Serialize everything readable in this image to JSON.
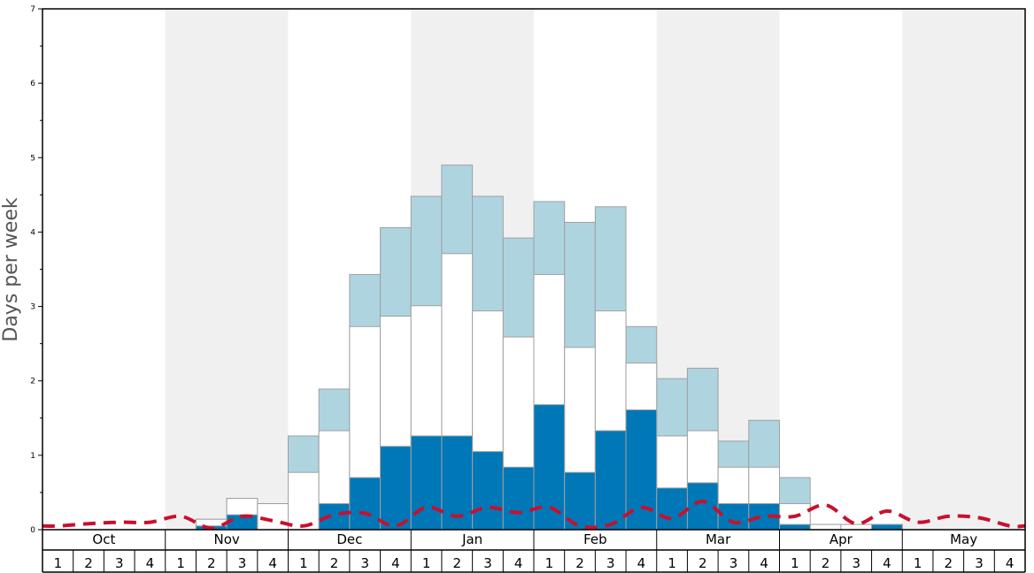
{
  "chart_data": {
    "type": "bar",
    "ylabel": "Days per week",
    "ylim": [
      0,
      7
    ],
    "y_ticks": [
      "0",
      "1",
      "2",
      "3",
      "4",
      "5",
      "6",
      "7"
    ],
    "months": [
      "Oct",
      "Nov",
      "Dec",
      "Jan",
      "Feb",
      "Mar",
      "Apr",
      "May"
    ],
    "week_labels": [
      "1",
      "2",
      "3",
      "4"
    ],
    "colors": {
      "series_bottom": "#0077b6",
      "series_middle": "#ffffff",
      "series_top": "#aed4e0",
      "average_line": "#c8102e",
      "band_shade": "#f0f0f0"
    },
    "series": [
      {
        "values": [
          0,
          0,
          0,
          0,
          0,
          0.05,
          0.2,
          0,
          0,
          0.35,
          0.7,
          1.12,
          1.26,
          1.26,
          1.05,
          0.84,
          1.68,
          0.77,
          1.33,
          1.61,
          0.56,
          0.63,
          0.35,
          0.35,
          0.07,
          0,
          0,
          0.07,
          0,
          0,
          0,
          0
        ]
      },
      {
        "values": [
          0,
          0,
          0,
          0,
          0,
          0.14,
          0.42,
          0.35,
          0.77,
          1.33,
          2.73,
          2.87,
          3.01,
          3.71,
          2.94,
          2.59,
          3.43,
          2.45,
          2.94,
          2.24,
          1.26,
          1.33,
          0.84,
          0.84,
          0.35,
          0.07,
          0.07,
          0.07,
          0,
          0,
          0,
          0
        ]
      },
      {
        "values": [
          0,
          0,
          0,
          0,
          0,
          0.14,
          0.42,
          0.35,
          1.26,
          1.89,
          3.43,
          4.06,
          4.48,
          4.9,
          4.48,
          3.92,
          4.41,
          4.13,
          4.34,
          2.73,
          2.03,
          2.17,
          1.19,
          1.47,
          0.7,
          0.07,
          0.07,
          0.07,
          0,
          0,
          0,
          0
        ]
      },
      {
        "values": [
          0.05,
          0.08,
          0.1,
          0.1,
          0.18,
          0.02,
          0.18,
          0.12,
          0.05,
          0.2,
          0.22,
          0.05,
          0.3,
          0.18,
          0.3,
          0.23,
          0.3,
          0.05,
          0.07,
          0.3,
          0.15,
          0.38,
          0.1,
          0.18,
          0.18,
          0.33,
          0.08,
          0.25,
          0.1,
          0.18,
          0.16,
          0.05
        ]
      }
    ]
  }
}
